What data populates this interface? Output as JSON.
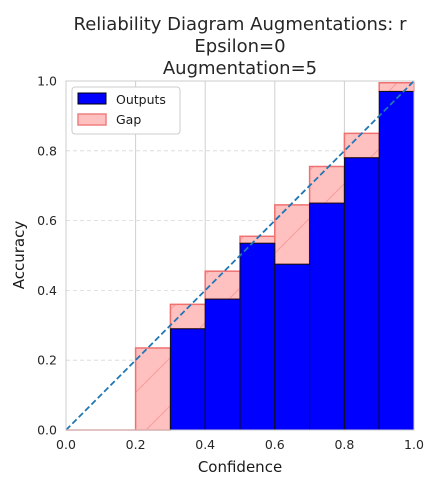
{
  "chart_data": {
    "type": "bar",
    "title": [
      "Reliability Diagram Augmentations: r",
      "Epsilon=0",
      "Augmentation=5"
    ],
    "xlabel": "Confidence",
    "ylabel": "Accuracy",
    "xlim": [
      0.0,
      1.0
    ],
    "ylim": [
      0.0,
      1.0
    ],
    "xticks": [
      "0.0",
      "0.2",
      "0.4",
      "0.6",
      "0.8",
      "1.0"
    ],
    "yticks": [
      "0.0",
      "0.2",
      "0.4",
      "0.6",
      "0.8",
      "1.0"
    ],
    "grid": true,
    "legend_position": "top-left",
    "bin_edges": [
      0.0,
      0.1,
      0.2,
      0.3,
      0.4,
      0.5,
      0.6,
      0.7,
      0.8,
      0.9,
      1.0
    ],
    "series": [
      {
        "name": "Outputs",
        "color": "#0000ff",
        "values": [
          0.0,
          0.0,
          0.0,
          0.29,
          0.375,
          0.535,
          0.475,
          0.65,
          0.78,
          0.97
        ]
      },
      {
        "name": "Gap",
        "color": "#ff9f9f",
        "values": [
          0.0,
          0.0,
          0.235,
          0.36,
          0.455,
          0.555,
          0.645,
          0.755,
          0.85,
          0.995
        ]
      }
    ],
    "diagonal_color": "#1f77b4"
  }
}
